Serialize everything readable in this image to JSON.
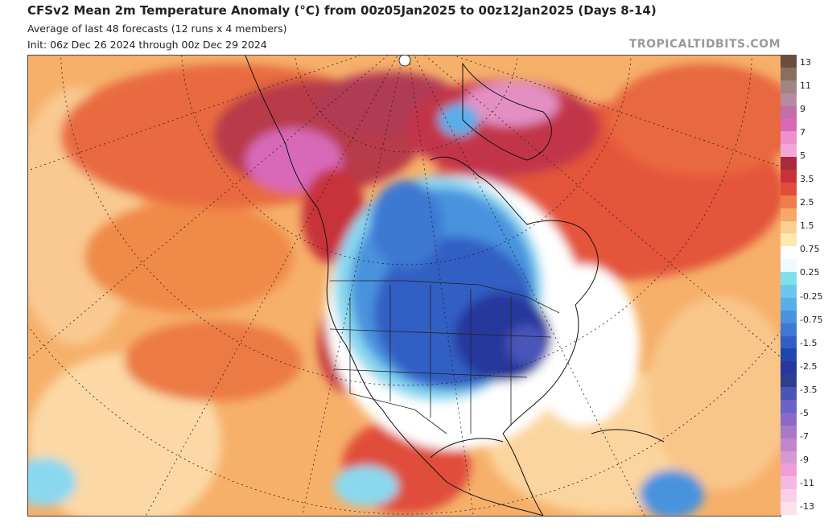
{
  "header": {
    "title": "CFSv2 Mean 2m Temperature Anomaly (°C) from 00z05Jan2025 to 00z12Jan2025 (Days 8-14)",
    "subtitle": "Average of last 48 forecasts (12 runs x 4 members)",
    "init": "Init: 06z Dec 26 2024 through 00z Dec 29 2024",
    "brand": "TROPICALTIDBITS.COM"
  },
  "map": {
    "region": "North America polar stereographic",
    "anomaly_colors": {
      "very_warm": "#e066b8",
      "strong_warm": "#b83a4a",
      "warm": "#d9452f",
      "mild_warm": "#f08a4a",
      "slight_warm": "#f8c58a",
      "neutral": "#ffffff",
      "slight_cold": "#8ad8f0",
      "cold": "#3f8fe0",
      "strong_cold": "#1f4fb8",
      "very_cold": "#2f3a8f"
    }
  },
  "colorbar": {
    "labels": [
      "13",
      "11",
      "9",
      "7",
      "5",
      "3.5",
      "2.5",
      "1.5",
      "0.75",
      "0.25",
      "-0.25",
      "-0.75",
      "-1.5",
      "-2.5",
      "-3.5",
      "-5",
      "-7",
      "-9",
      "-11",
      "-13"
    ],
    "colors": [
      "#6a4f3e",
      "#8a6f60",
      "#a08585",
      "#b78aa2",
      "#c26ea7",
      "#d869b8",
      "#ef8fcf",
      "#f2a7d6",
      "#a82a3d",
      "#c8323a",
      "#e04d3b",
      "#f07d4a",
      "#f6a866",
      "#fbcf8f",
      "#fde8b0",
      "#ffffff",
      "#eefaff",
      "#7fe0ea",
      "#6ec5ee",
      "#5aaee8",
      "#4a93de",
      "#3e78d3",
      "#305fc4",
      "#1e46b2",
      "#25389c",
      "#2c3f8f",
      "#4a54b8",
      "#6a62c8",
      "#8a6ac8",
      "#a77ac9",
      "#c088cb",
      "#d69ad2",
      "#ee9fd9",
      "#f5b8e2",
      "#f9cfe8",
      "#fbe0ee"
    ]
  }
}
